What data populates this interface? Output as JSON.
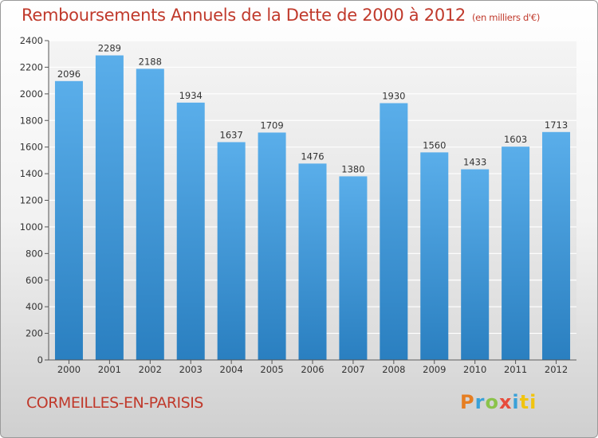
{
  "header": {
    "title": "Remboursements Annuels de la Dette de 2000 à 2012",
    "unit": "(en milliers d'€)"
  },
  "footer": {
    "commune": "CORMEILLES-EN-PARISIS",
    "logo_letters": [
      "P",
      "r",
      "o",
      "x",
      "i",
      "ti"
    ]
  },
  "colors": {
    "bar_top": "#5aaeea",
    "bar_bottom": "#2a7fc0",
    "title": "#c0392b"
  },
  "chart_data": {
    "type": "bar",
    "title": "Remboursements Annuels de la Dette de 2000 à 2012",
    "xlabel": "",
    "ylabel": "",
    "categories": [
      "2000",
      "2001",
      "2002",
      "2003",
      "2004",
      "2005",
      "2006",
      "2007",
      "2008",
      "2009",
      "2010",
      "2011",
      "2012"
    ],
    "values": [
      2096,
      2289,
      2188,
      1934,
      1637,
      1709,
      1476,
      1380,
      1930,
      1560,
      1433,
      1603,
      1713
    ],
    "ylim": [
      0,
      2400
    ],
    "yticks": [
      0,
      200,
      400,
      600,
      800,
      1000,
      1200,
      1400,
      1600,
      1800,
      2000,
      2200,
      2400
    ],
    "grid": true
  }
}
